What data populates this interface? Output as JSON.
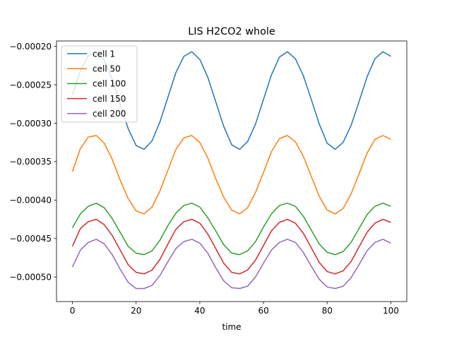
{
  "chart_data": {
    "type": "line",
    "title": "LIS H2CO2 whole",
    "xlabel": "time",
    "ylabel": "",
    "xlim": [
      -5,
      105
    ],
    "ylim": [
      -0.000532,
      -0.000193
    ],
    "xticks": [
      0,
      20,
      40,
      60,
      80,
      100
    ],
    "xtick_labels": [
      "0",
      "20",
      "40",
      "60",
      "80",
      "100"
    ],
    "yticks": [
      -0.0002,
      -0.00025,
      -0.0003,
      -0.00035,
      -0.0004,
      -0.00045,
      -0.0005
    ],
    "ytick_labels": [
      "−0.00020",
      "−0.00025",
      "−0.00030",
      "−0.00035",
      "−0.00040",
      "−0.00045",
      "−0.00050"
    ],
    "grid": false,
    "legend_position": "top-left",
    "x": [
      0,
      2.5,
      5,
      7.5,
      10,
      12.5,
      15,
      17.5,
      20,
      22.5,
      25,
      27.5,
      30,
      32.5,
      35,
      37.5,
      40,
      42.5,
      45,
      47.5,
      50,
      52.5,
      55,
      57.5,
      60,
      62.5,
      65,
      67.5,
      70,
      72.5,
      75,
      77.5,
      80,
      82.5,
      85,
      87.5,
      90,
      92.5,
      95,
      97.5,
      100
    ],
    "series": [
      {
        "name": "cell 1",
        "color": "#1f77b4",
        "values": [
          -0.000263,
          -0.000232,
          -0.000212,
          -0.000207,
          -0.000218,
          -0.000243,
          -0.000275,
          -0.000307,
          -0.000329,
          -0.000334,
          -0.000323,
          -0.000298,
          -0.000266,
          -0.000234,
          -0.000213,
          -0.000207,
          -0.000217,
          -0.00024,
          -0.000272,
          -0.000304,
          -0.000328,
          -0.000334,
          -0.000324,
          -0.000301,
          -0.000269,
          -0.000237,
          -0.000214,
          -0.000207,
          -0.000216,
          -0.000238,
          -0.000269,
          -0.000301,
          -0.000326,
          -0.000334,
          -0.000325,
          -0.000303,
          -0.000272,
          -0.00024,
          -0.000216,
          -0.000207,
          -0.000213
        ]
      },
      {
        "name": "cell 50",
        "color": "#ff7f0e",
        "values": [
          -0.000363,
          -0.000333,
          -0.000318,
          -0.000316,
          -0.000326,
          -0.000347,
          -0.000374,
          -0.000398,
          -0.000414,
          -0.000418,
          -0.000409,
          -0.000388,
          -0.000361,
          -0.000334,
          -0.000319,
          -0.000316,
          -0.000325,
          -0.000345,
          -0.000372,
          -0.000396,
          -0.000413,
          -0.000418,
          -0.00041,
          -0.00039,
          -0.000364,
          -0.000337,
          -0.00032,
          -0.000316,
          -0.000324,
          -0.000343,
          -0.000369,
          -0.000395,
          -0.000413,
          -0.000418,
          -0.000411,
          -0.000392,
          -0.000366,
          -0.000339,
          -0.000321,
          -0.000316,
          -0.000321
        ]
      },
      {
        "name": "cell 100",
        "color": "#2ca02c",
        "values": [
          -0.000436,
          -0.000418,
          -0.000408,
          -0.000404,
          -0.00041,
          -0.000424,
          -0.000442,
          -0.00046,
          -0.000469,
          -0.000471,
          -0.000466,
          -0.000452,
          -0.000433,
          -0.000417,
          -0.000407,
          -0.000404,
          -0.000409,
          -0.000423,
          -0.00044,
          -0.000458,
          -0.000469,
          -0.000471,
          -0.000466,
          -0.000454,
          -0.000435,
          -0.000418,
          -0.000407,
          -0.000404,
          -0.000408,
          -0.000421,
          -0.000439,
          -0.000457,
          -0.000468,
          -0.000471,
          -0.000467,
          -0.000455,
          -0.000437,
          -0.000419,
          -0.000408,
          -0.000404,
          -0.000408
        ]
      },
      {
        "name": "cell 150",
        "color": "#d62728",
        "values": [
          -0.00046,
          -0.000437,
          -0.000428,
          -0.000425,
          -0.000432,
          -0.000446,
          -0.000465,
          -0.000484,
          -0.000494,
          -0.000496,
          -0.000491,
          -0.000477,
          -0.000457,
          -0.000438,
          -0.000428,
          -0.000425,
          -0.00043,
          -0.000444,
          -0.000463,
          -0.000482,
          -0.000494,
          -0.000496,
          -0.000491,
          -0.000478,
          -0.000459,
          -0.00044,
          -0.000429,
          -0.000425,
          -0.00043,
          -0.000443,
          -0.000462,
          -0.000481,
          -0.000493,
          -0.000496,
          -0.000492,
          -0.00048,
          -0.000461,
          -0.000442,
          -0.00043,
          -0.000425,
          -0.000429
        ]
      },
      {
        "name": "cell 200",
        "color": "#9467bd",
        "values": [
          -0.000487,
          -0.000465,
          -0.000455,
          -0.000451,
          -0.000457,
          -0.000471,
          -0.00049,
          -0.000507,
          -0.000515,
          -0.000515,
          -0.000511,
          -0.000498,
          -0.00048,
          -0.000463,
          -0.000454,
          -0.000451,
          -0.000456,
          -0.000469,
          -0.000488,
          -0.000505,
          -0.000514,
          -0.000515,
          -0.000512,
          -0.0005,
          -0.000482,
          -0.000465,
          -0.000455,
          -0.000451,
          -0.000455,
          -0.000468,
          -0.000486,
          -0.000503,
          -0.000513,
          -0.000515,
          -0.000512,
          -0.000501,
          -0.000484,
          -0.000466,
          -0.000455,
          -0.000451,
          -0.000456
        ]
      }
    ]
  }
}
